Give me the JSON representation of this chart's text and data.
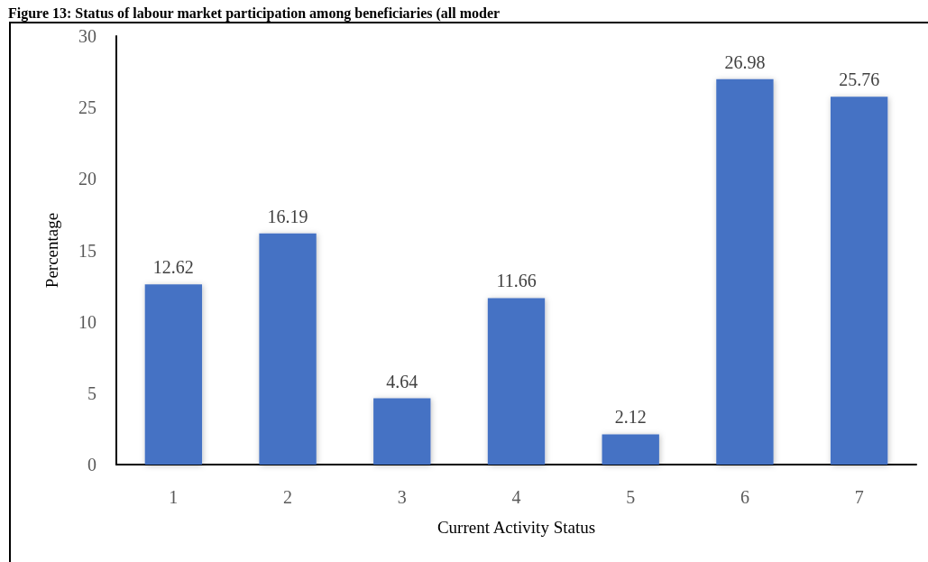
{
  "chart_data": {
    "type": "bar",
    "title": "Figure 13: Status of labour market participation among beneficiaries (all moder",
    "xlabel": "Current Activity Status",
    "ylabel": "Percentage",
    "categories": [
      "1",
      "2",
      "3",
      "4",
      "5",
      "6",
      "7"
    ],
    "values": [
      12.62,
      16.19,
      4.64,
      11.66,
      2.12,
      26.98,
      25.76
    ],
    "color": "#4472c4",
    "ylim": [
      0,
      30
    ],
    "yticks": [
      0,
      5,
      10,
      15,
      20,
      25,
      30
    ],
    "grid": false,
    "data_labels": true
  }
}
